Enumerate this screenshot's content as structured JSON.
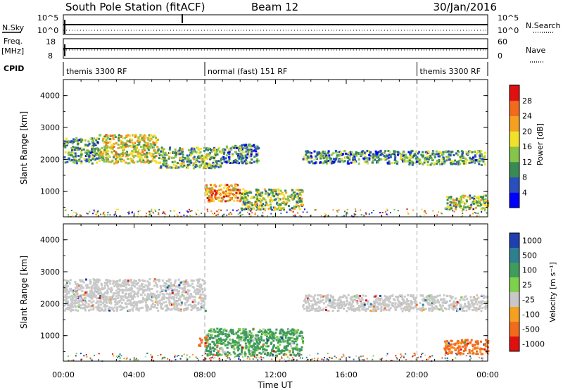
{
  "header": {
    "station": "South Pole Station (fitACF)",
    "beam": "Beam 12",
    "date": "30/Jan/2016"
  },
  "top_panels": {
    "nsky_label": "N.Sky",
    "nsky_ticks": [
      "10^5",
      "10^0"
    ],
    "nsearch_label": "N.Search",
    "nsearch_ticks": [
      "10^5",
      "10^0"
    ],
    "freq_label": "Freq.",
    "freq_unit": "[MHz]",
    "freq_ticks": [
      "18",
      "8"
    ],
    "nave_label": "Nave",
    "nave_ticks": [
      "60",
      "0"
    ],
    "cpid_label": "CPID",
    "cpid_segments": [
      {
        "label": "themis 3300 RF",
        "start": 0,
        "end": 8
      },
      {
        "label": "normal (fast) 151 RF",
        "start": 8,
        "end": 20
      },
      {
        "label": "themis 3300 RF",
        "start": 20,
        "end": 24
      }
    ]
  },
  "xaxis": {
    "label": "Time UT",
    "ticks": [
      "00:00",
      "04:00",
      "08:00",
      "12:00",
      "16:00",
      "20:00",
      "00:00"
    ]
  },
  "chart_data": [
    {
      "type": "heatmap",
      "ylabel": "Slant Range [km]",
      "xlabel": "Time UT",
      "xlim": [
        0,
        24
      ],
      "ylim": [
        200,
        4500
      ],
      "yticks": [
        "1000",
        "2000",
        "3000",
        "4000"
      ],
      "colorbar_label": "Power [dB]",
      "colorbar_ticks": [
        "28",
        "24",
        "20",
        "16",
        "12",
        "8",
        "4"
      ],
      "colorbar_colors": [
        "#0000ff",
        "#2a4fbd",
        "#3a8a55",
        "#86c44a",
        "#f2e12b",
        "#f5a020",
        "#f26a1c",
        "#e01010"
      ],
      "regions": [
        {
          "t0": 0.0,
          "t1": 2.0,
          "r0": 1900,
          "r1": 2700,
          "level": 0.35
        },
        {
          "t0": 2.0,
          "t1": 5.3,
          "r0": 1900,
          "r1": 2800,
          "level": 0.55
        },
        {
          "t0": 5.3,
          "t1": 9.0,
          "r0": 1750,
          "r1": 2400,
          "level": 0.4
        },
        {
          "t0": 9.0,
          "t1": 11.0,
          "r0": 1900,
          "r1": 2500,
          "level": 0.3
        },
        {
          "t0": 13.5,
          "t1": 19.5,
          "r0": 1900,
          "r1": 2300,
          "level": 0.3
        },
        {
          "t0": 19.5,
          "t1": 23.8,
          "r0": 1850,
          "r1": 2300,
          "level": 0.35
        },
        {
          "t0": 8.0,
          "t1": 10.0,
          "r0": 700,
          "r1": 1250,
          "level": 0.7
        },
        {
          "t0": 10.0,
          "t1": 13.5,
          "r0": 450,
          "r1": 1100,
          "level": 0.45
        },
        {
          "t0": 21.5,
          "t1": 24.0,
          "r0": 450,
          "r1": 900,
          "level": 0.45
        }
      ]
    },
    {
      "type": "heatmap",
      "ylabel": "Slant Range [km]",
      "xlabel": "Time UT",
      "xlim": [
        0,
        24
      ],
      "ylim": [
        200,
        4500
      ],
      "yticks": [
        "1000",
        "2000",
        "3000",
        "4000"
      ],
      "colorbar_label": "Velocity [m s⁻¹]",
      "colorbar_ticks": [
        "1000",
        "500",
        "100",
        "25",
        "-25",
        "-100",
        "-500",
        "-1000"
      ],
      "colorbar_colors": [
        "#1f3fb0",
        "#2e7f8f",
        "#3f9c5a",
        "#7fd04a",
        "#c8c8c8",
        "#f5a020",
        "#f26a1c",
        "#e01010"
      ],
      "regions": [
        {
          "t0": 0.0,
          "t1": 8.0,
          "r0": 1800,
          "r1": 2800,
          "velocity": 0
        },
        {
          "t0": 13.5,
          "t1": 24.0,
          "r0": 1800,
          "r1": 2300,
          "velocity": 0
        },
        {
          "t0": 8.0,
          "t1": 13.5,
          "r0": 400,
          "r1": 1250,
          "velocity": 150
        },
        {
          "t0": 7.6,
          "t1": 8.1,
          "r0": 700,
          "r1": 1000,
          "velocity": -200
        },
        {
          "t0": 21.5,
          "t1": 24.0,
          "r0": 450,
          "r1": 900,
          "velocity": -200
        }
      ]
    }
  ]
}
